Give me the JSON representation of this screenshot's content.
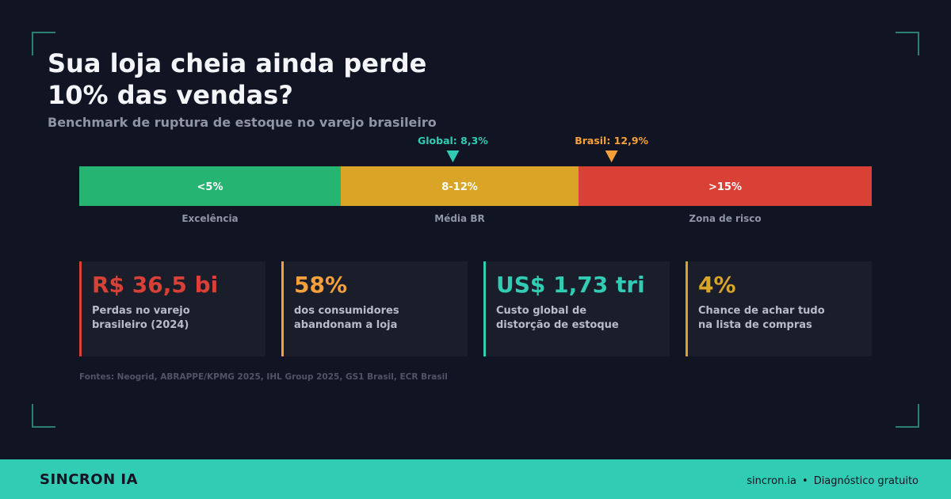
{
  "header": {
    "title_lines": [
      "Sua loja cheia ainda perde",
      "10% das vendas?"
    ],
    "subtitle": "Benchmark de ruptura de estoque no varejo brasileiro"
  },
  "chart_data": {
    "type": "bar",
    "segments": [
      {
        "label": "<5%",
        "caption": "Excelência",
        "from": 0,
        "to": 5,
        "color": "#26b473"
      },
      {
        "label": "8-12%",
        "caption": "Média BR",
        "from": 5,
        "to": 12,
        "color": "#daa526"
      },
      {
        "label": ">15%",
        "caption": "Zona de risco",
        "from": 12,
        "to": 20,
        "color": "#d94036"
      }
    ],
    "markers": [
      {
        "label": "Global: 8,3%",
        "value": 8.3,
        "color": "#32cbb3"
      },
      {
        "label": "Brasil: 12,9%",
        "value": 12.9,
        "color": "#f6a03b"
      }
    ]
  },
  "stats": [
    {
      "value": "R$ 36,5 bi",
      "label_lines": [
        "Perdas no varejo",
        "brasileiro (2024)"
      ],
      "color": "#d94036"
    },
    {
      "value": "58%",
      "label_lines": [
        "dos consumidores",
        "abandonam a loja"
      ],
      "color": "#f6a03b"
    },
    {
      "value": "US$ 1,73 tri",
      "label_lines": [
        "Custo global de",
        "distorção de estoque"
      ],
      "color": "#32cbb3"
    },
    {
      "value": "4%",
      "label_lines": [
        "Chance de achar tudo",
        "na lista de compras"
      ],
      "color": "#daa526"
    }
  ],
  "sources": "Fontes: Neogrid, ABRAPPE/KPMG 2025, IHL Group 2025, GS1 Brasil, ECR Brasil",
  "footer": {
    "brand": "SINCRON IA",
    "site": "sincron.ia",
    "separator": "•",
    "cta": "Diagnóstico gratuito"
  }
}
